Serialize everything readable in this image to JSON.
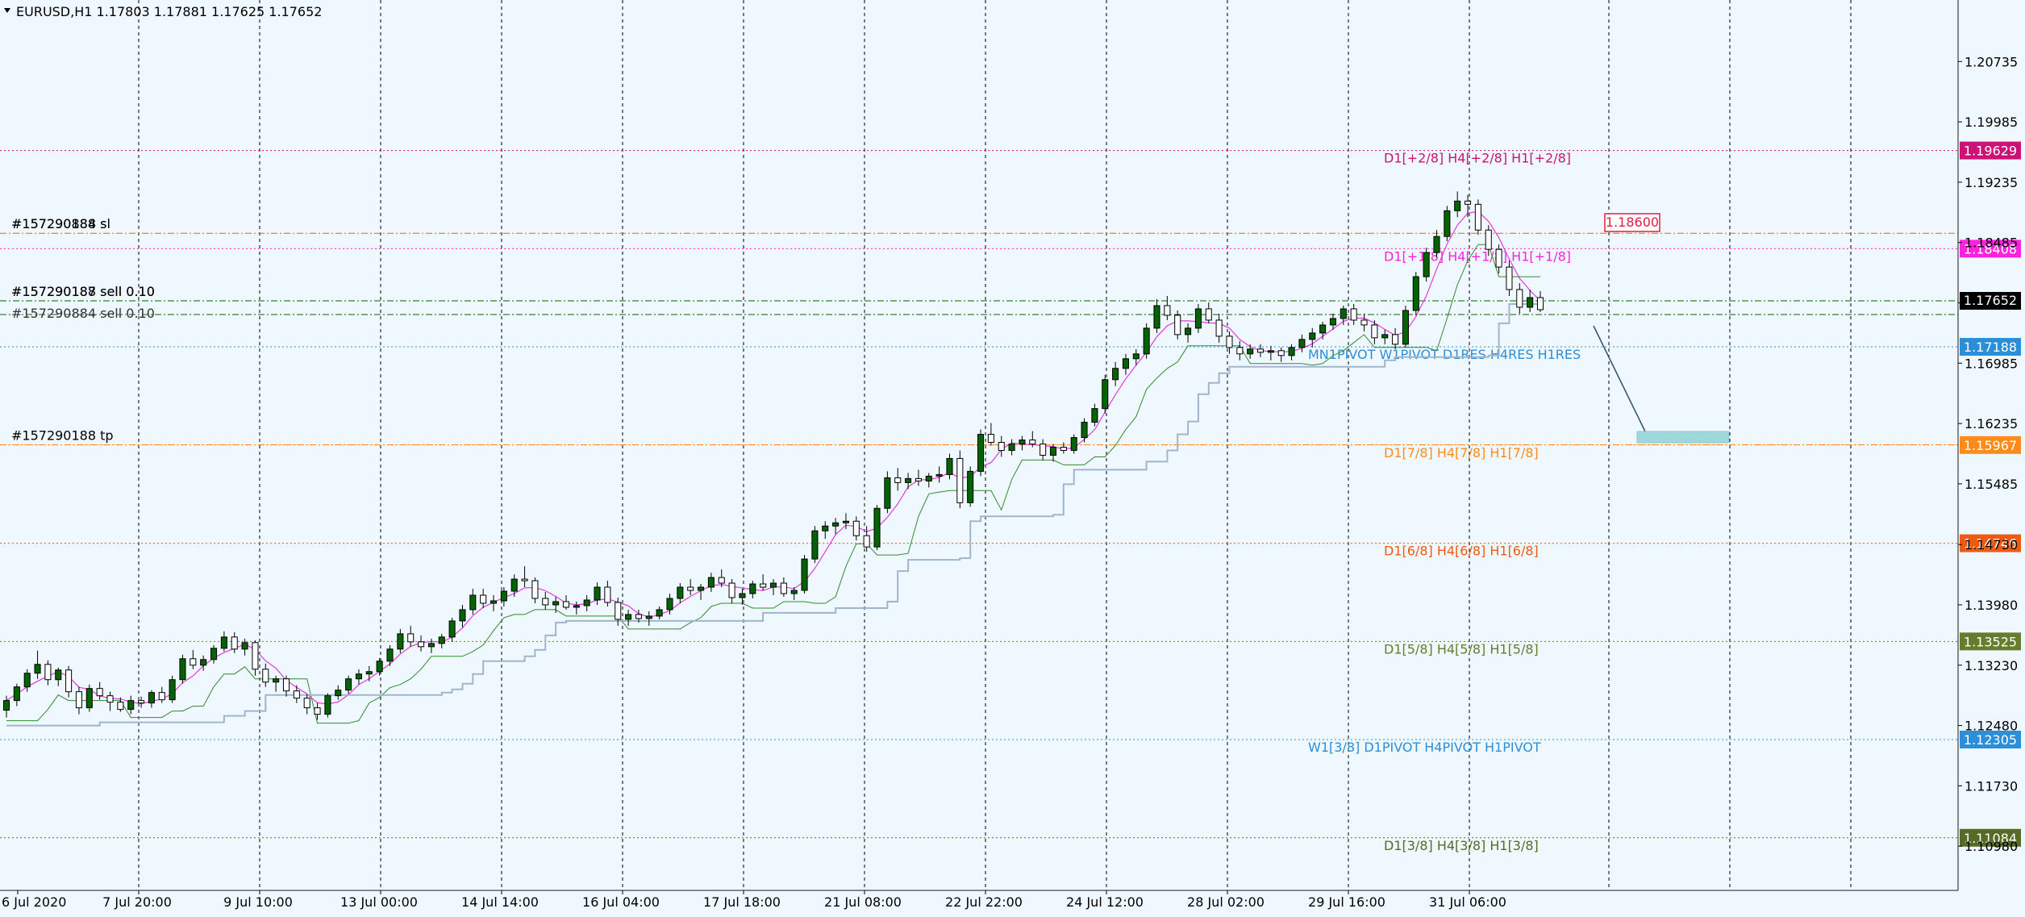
{
  "chart_data": {
    "type": "candlestick",
    "symbol": "EURUSD,H1",
    "ohlc_label": "1.17803 1.17881 1.17625 1.17652",
    "title": "EURUSD,H1  1.17803 1.17881 1.17625 1.17652",
    "ylim": [
      1.1043,
      1.215
    ],
    "y_ticks": [
      "1.20735",
      "1.19985",
      "1.19235",
      "1.18485",
      "1.17735",
      "1.16985",
      "1.16235",
      "1.15485",
      "1.14730",
      "1.13980",
      "1.13230",
      "1.12480",
      "1.11730",
      "1.10980"
    ],
    "x_ticks": [
      "6 Jul 2020",
      "7 Jul 20:00",
      "9 Jul 10:00",
      "13 Jul 00:00",
      "14 Jul 14:00",
      "16 Jul 04:00",
      "17 Jul 18:00",
      "21 Jul 08:00",
      "22 Jul 22:00",
      "24 Jul 12:00",
      "28 Jul 02:00",
      "29 Jul 16:00",
      "31 Jul 06:00"
    ],
    "current_price": "1.17652",
    "grid": true,
    "level_lines": [
      {
        "price": 1.19629,
        "label": "D1[+2/8] H4[+2/8] H1[+2/8]",
        "tag": "1.19629",
        "color": "#cc1177"
      },
      {
        "price": 1.18408,
        "label": "D1[+1/8] H4[+1/8] H1[+1/8]",
        "tag": "1.18408",
        "color": "#ff22dd"
      },
      {
        "price": 1.17188,
        "label": "MN1PIVOT W1PIVOT D1RES H4RES H1RES",
        "tag": "1.17188",
        "color": "#2b8ed8"
      },
      {
        "price": 1.15967,
        "label": "D1[7/8] H4[7/8] H1[7/8]",
        "tag": "1.15967",
        "color": "#ff8c1a"
      },
      {
        "price": 1.14746,
        "label": "D1[6/8] H4[6/8] H1[6/8]",
        "tag": "1.14746",
        "color": "#f05a10"
      },
      {
        "price": 1.13525,
        "label": "D1[5/8] H4[5/8] H1[5/8]",
        "tag": "1.13525",
        "color": "#667d2e"
      },
      {
        "price": 1.12305,
        "label": "W1[3/8] D1PIVOT H4PIVOT H1PIVOT",
        "tag": "1.12305",
        "color": "#2b8ed8"
      },
      {
        "price": 1.11084,
        "label": "D1[3/8] H4[3/8] H1[3/8]",
        "tag": "1.11084",
        "color": "#566b26"
      }
    ],
    "orders": [
      {
        "price": 1.186,
        "label": "#157290188 sl",
        "overlap": "#157290884 sl"
      },
      {
        "price": 1.1776,
        "label": "#157290188 sell 0.10",
        "overlap": "#157290187 sell 0.10"
      },
      {
        "price": 1.1759,
        "label": "#157290884 sell 0.10"
      },
      {
        "price": 1.1597,
        "label": "#157290188 tp"
      }
    ],
    "price_alert": "1.18600",
    "candles": [
      [
        1.1267,
        1.1285,
        1.1258,
        1.1279
      ],
      [
        1.1279,
        1.13,
        1.1272,
        1.1296
      ],
      [
        1.1296,
        1.1318,
        1.129,
        1.1313
      ],
      [
        1.1313,
        1.1341,
        1.1306,
        1.1324
      ],
      [
        1.1324,
        1.1329,
        1.1298,
        1.1305
      ],
      [
        1.1305,
        1.132,
        1.1297,
        1.1317
      ],
      [
        1.1317,
        1.1322,
        1.1283,
        1.129
      ],
      [
        1.129,
        1.1296,
        1.1262,
        1.127
      ],
      [
        1.127,
        1.1299,
        1.1265,
        1.1294
      ],
      [
        1.1294,
        1.1302,
        1.128,
        1.1285
      ],
      [
        1.1285,
        1.129,
        1.1266,
        1.1277
      ],
      [
        1.1277,
        1.1283,
        1.1265,
        1.1268
      ],
      [
        1.1268,
        1.1285,
        1.1262,
        1.1279
      ],
      [
        1.1279,
        1.1284,
        1.127,
        1.1276
      ],
      [
        1.1276,
        1.1292,
        1.127,
        1.1289
      ],
      [
        1.1289,
        1.1296,
        1.1276,
        1.128
      ],
      [
        1.128,
        1.131,
        1.1276,
        1.1305
      ],
      [
        1.1305,
        1.1336,
        1.13,
        1.1331
      ],
      [
        1.1331,
        1.1342,
        1.1318,
        1.1323
      ],
      [
        1.1323,
        1.1335,
        1.1316,
        1.133
      ],
      [
        1.133,
        1.1348,
        1.1325,
        1.1344
      ],
      [
        1.1344,
        1.1365,
        1.134,
        1.1358
      ],
      [
        1.1358,
        1.1364,
        1.1338,
        1.1343
      ],
      [
        1.1343,
        1.1356,
        1.1335,
        1.1351
      ],
      [
        1.1351,
        1.1354,
        1.131,
        1.1318
      ],
      [
        1.1318,
        1.1325,
        1.1296,
        1.1302
      ],
      [
        1.1302,
        1.131,
        1.129,
        1.1306
      ],
      [
        1.1306,
        1.131,
        1.1284,
        1.1291
      ],
      [
        1.1291,
        1.1298,
        1.1276,
        1.1282
      ],
      [
        1.1282,
        1.1287,
        1.1262,
        1.127
      ],
      [
        1.127,
        1.1276,
        1.1255,
        1.1262
      ],
      [
        1.1262,
        1.1288,
        1.1258,
        1.1285
      ],
      [
        1.1285,
        1.1298,
        1.128,
        1.1292
      ],
      [
        1.1292,
        1.131,
        1.1287,
        1.1306
      ],
      [
        1.1306,
        1.1318,
        1.1299,
        1.1312
      ],
      [
        1.1312,
        1.1322,
        1.1303,
        1.1315
      ],
      [
        1.1315,
        1.1332,
        1.131,
        1.1328
      ],
      [
        1.1328,
        1.1348,
        1.1322,
        1.1343
      ],
      [
        1.1343,
        1.1368,
        1.1338,
        1.1362
      ],
      [
        1.1362,
        1.1372,
        1.1346,
        1.1352
      ],
      [
        1.1352,
        1.136,
        1.134,
        1.1346
      ],
      [
        1.1346,
        1.1356,
        1.1338,
        1.135
      ],
      [
        1.135,
        1.1362,
        1.1344,
        1.1358
      ],
      [
        1.1358,
        1.1382,
        1.1352,
        1.1378
      ],
      [
        1.1378,
        1.1398,
        1.137,
        1.1392
      ],
      [
        1.1392,
        1.1418,
        1.1386,
        1.141
      ],
      [
        1.141,
        1.1418,
        1.1394,
        1.14
      ],
      [
        1.14,
        1.141,
        1.139,
        1.1403
      ],
      [
        1.1403,
        1.142,
        1.1396,
        1.1415
      ],
      [
        1.1415,
        1.1436,
        1.1408,
        1.143
      ],
      [
        1.143,
        1.1446,
        1.142,
        1.1428
      ],
      [
        1.1428,
        1.1432,
        1.14,
        1.1406
      ],
      [
        1.1406,
        1.1414,
        1.1392,
        1.1398
      ],
      [
        1.1398,
        1.1408,
        1.1388,
        1.1402
      ],
      [
        1.1402,
        1.141,
        1.1392,
        1.1395
      ],
      [
        1.1395,
        1.1402,
        1.1386,
        1.1397
      ],
      [
        1.1397,
        1.141,
        1.139,
        1.1404
      ],
      [
        1.1404,
        1.1426,
        1.1398,
        1.142
      ],
      [
        1.142,
        1.1428,
        1.1396,
        1.1401
      ],
      [
        1.1401,
        1.1407,
        1.1372,
        1.138
      ],
      [
        1.138,
        1.1392,
        1.1372,
        1.1386
      ],
      [
        1.1386,
        1.1392,
        1.1376,
        1.1381
      ],
      [
        1.1381,
        1.139,
        1.1372,
        1.1384
      ],
      [
        1.1384,
        1.1396,
        1.138,
        1.1392
      ],
      [
        1.1392,
        1.1412,
        1.1386,
        1.1406
      ],
      [
        1.1406,
        1.1425,
        1.14,
        1.142
      ],
      [
        1.142,
        1.143,
        1.141,
        1.1416
      ],
      [
        1.1416,
        1.1424,
        1.1404,
        1.142
      ],
      [
        1.142,
        1.1438,
        1.1414,
        1.1432
      ],
      [
        1.1432,
        1.1442,
        1.142,
        1.1425
      ],
      [
        1.1425,
        1.143,
        1.14,
        1.1407
      ],
      [
        1.1407,
        1.1418,
        1.1398,
        1.1412
      ],
      [
        1.1412,
        1.1428,
        1.1406,
        1.1424
      ],
      [
        1.1424,
        1.1436,
        1.1416,
        1.142
      ],
      [
        1.142,
        1.143,
        1.141,
        1.1425
      ],
      [
        1.1425,
        1.1432,
        1.1408,
        1.1412
      ],
      [
        1.1412,
        1.142,
        1.1404,
        1.1416
      ],
      [
        1.1416,
        1.146,
        1.1412,
        1.1455
      ],
      [
        1.1455,
        1.1496,
        1.145,
        1.149
      ],
      [
        1.149,
        1.1502,
        1.148,
        1.1496
      ],
      [
        1.1496,
        1.1506,
        1.1486,
        1.15
      ],
      [
        1.15,
        1.1512,
        1.1492,
        1.1502
      ],
      [
        1.1502,
        1.1508,
        1.1478,
        1.1484
      ],
      [
        1.1484,
        1.1496,
        1.1464,
        1.147
      ],
      [
        1.147,
        1.1522,
        1.1466,
        1.1518
      ],
      [
        1.1518,
        1.1564,
        1.1512,
        1.1556
      ],
      [
        1.1556,
        1.1568,
        1.154,
        1.155
      ],
      [
        1.155,
        1.1562,
        1.1542,
        1.1555
      ],
      [
        1.1555,
        1.1566,
        1.1546,
        1.1552
      ],
      [
        1.1552,
        1.1562,
        1.1544,
        1.1558
      ],
      [
        1.1558,
        1.157,
        1.155,
        1.156
      ],
      [
        1.156,
        1.1586,
        1.1554,
        1.158
      ],
      [
        1.158,
        1.159,
        1.1518,
        1.1525
      ],
      [
        1.1525,
        1.157,
        1.152,
        1.1564
      ],
      [
        1.1564,
        1.1616,
        1.1558,
        1.161
      ],
      [
        1.161,
        1.1624,
        1.1596,
        1.16
      ],
      [
        1.16,
        1.1608,
        1.1582,
        1.159
      ],
      [
        1.159,
        1.1604,
        1.1584,
        1.1598
      ],
      [
        1.1598,
        1.1608,
        1.159,
        1.1603
      ],
      [
        1.1603,
        1.1614,
        1.1594,
        1.1598
      ],
      [
        1.1598,
        1.1604,
        1.1578,
        1.1584
      ],
      [
        1.1584,
        1.1598,
        1.1576,
        1.1594
      ],
      [
        1.1594,
        1.16,
        1.1586,
        1.159
      ],
      [
        1.159,
        1.161,
        1.1586,
        1.1606
      ],
      [
        1.1606,
        1.163,
        1.16,
        1.1625
      ],
      [
        1.1625,
        1.1648,
        1.162,
        1.1642
      ],
      [
        1.1642,
        1.1684,
        1.1636,
        1.1678
      ],
      [
        1.1678,
        1.17,
        1.167,
        1.1692
      ],
      [
        1.1692,
        1.171,
        1.1684,
        1.1704
      ],
      [
        1.1704,
        1.1716,
        1.1696,
        1.171
      ],
      [
        1.171,
        1.1748,
        1.1704,
        1.1742
      ],
      [
        1.1742,
        1.1778,
        1.1736,
        1.177
      ],
      [
        1.177,
        1.1782,
        1.1752,
        1.1758
      ],
      [
        1.1758,
        1.1764,
        1.1728,
        1.1734
      ],
      [
        1.1734,
        1.1748,
        1.1724,
        1.1742
      ],
      [
        1.1742,
        1.1772,
        1.1736,
        1.1766
      ],
      [
        1.1766,
        1.1774,
        1.1748,
        1.1752
      ],
      [
        1.1752,
        1.176,
        1.1724,
        1.1732
      ],
      [
        1.1732,
        1.1738,
        1.171,
        1.1718
      ],
      [
        1.1718,
        1.1726,
        1.1702,
        1.171
      ],
      [
        1.171,
        1.1722,
        1.1704,
        1.1716
      ],
      [
        1.1716,
        1.1722,
        1.1706,
        1.1712
      ],
      [
        1.1712,
        1.172,
        1.1702,
        1.1714
      ],
      [
        1.1714,
        1.1718,
        1.17,
        1.1708
      ],
      [
        1.1708,
        1.1722,
        1.1702,
        1.1718
      ],
      [
        1.1718,
        1.1734,
        1.1712,
        1.1728
      ],
      [
        1.1728,
        1.1742,
        1.1718,
        1.1736
      ],
      [
        1.1736,
        1.175,
        1.1728,
        1.1746
      ],
      [
        1.1746,
        1.176,
        1.174,
        1.1754
      ],
      [
        1.1754,
        1.177,
        1.1746,
        1.1766
      ],
      [
        1.1766,
        1.1772,
        1.1746,
        1.1752
      ],
      [
        1.1752,
        1.176,
        1.1738,
        1.1746
      ],
      [
        1.1746,
        1.1752,
        1.1722,
        1.173
      ],
      [
        1.173,
        1.174,
        1.1722,
        1.1734
      ],
      [
        1.1734,
        1.1742,
        1.1716,
        1.1722
      ],
      [
        1.1722,
        1.177,
        1.1718,
        1.1764
      ],
      [
        1.1764,
        1.1812,
        1.1758,
        1.1806
      ],
      [
        1.1806,
        1.1842,
        1.18,
        1.1836
      ],
      [
        1.1836,
        1.1864,
        1.183,
        1.1856
      ],
      [
        1.1856,
        1.1894,
        1.185,
        1.1888
      ],
      [
        1.1888,
        1.1912,
        1.188,
        1.19
      ],
      [
        1.19,
        1.1908,
        1.188,
        1.1896
      ],
      [
        1.1896,
        1.1902,
        1.1858,
        1.1864
      ],
      [
        1.1864,
        1.187,
        1.1832,
        1.184
      ],
      [
        1.184,
        1.1846,
        1.181,
        1.1818
      ],
      [
        1.1818,
        1.1826,
        1.1782,
        1.179
      ],
      [
        1.179,
        1.1798,
        1.176,
        1.1768
      ],
      [
        1.1768,
        1.179,
        1.1762,
        1.178
      ],
      [
        1.178,
        1.1788,
        1.1762,
        1.1765
      ]
    ]
  }
}
